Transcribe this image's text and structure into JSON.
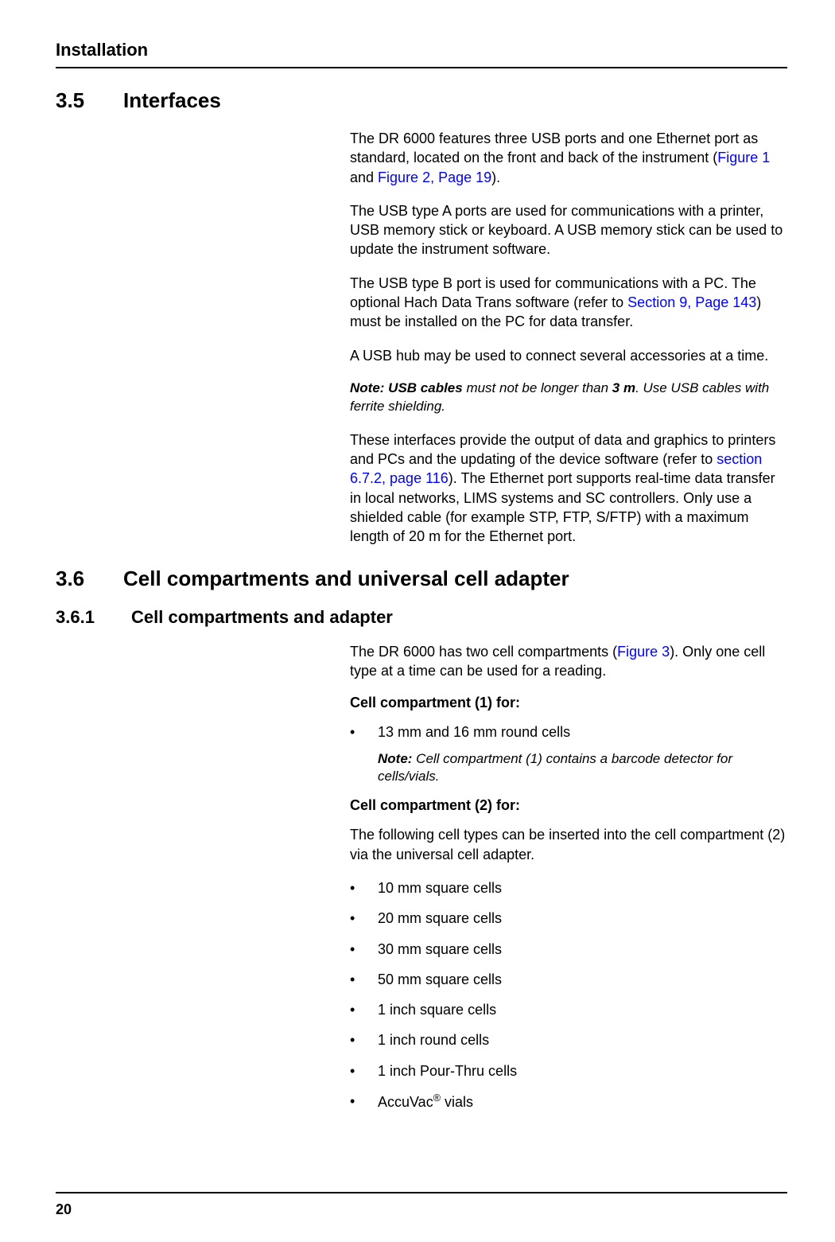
{
  "header": {
    "title": "Installation"
  },
  "section_3_5": {
    "number": "3.5",
    "title": "Interfaces",
    "para1_pre": "The DR 6000 features three USB ports and one Ethernet port as standard, located on the front and back of the instrument (",
    "para1_link1": "Figure 1",
    "para1_mid": " and ",
    "para1_link2": "Figure 2, Page 19",
    "para1_post": ").",
    "para2": "The USB type A ports are used for communications with a printer, USB memory stick or keyboard. A USB memory stick can be used to update the instrument software.",
    "para3_pre": "The USB type B port is used for communications with a PC. The optional Hach Data Trans software (refer to ",
    "para3_link": "Section 9, Page 143",
    "para3_post": ") must be installed on the PC for data transfer.",
    "para4": "A USB hub may be used to connect several accessories at a time.",
    "note1_label": "Note: ",
    "note1_bold1": "USB cables",
    "note1_mid": " must not be longer than ",
    "note1_bold2": "3 m",
    "note1_post": ". Use USB cables with ferrite shielding.",
    "para5_pre": "These interfaces provide the output of data and graphics to printers and PCs and the updating of the device software (refer to ",
    "para5_link": "section 6.7.2, page 116",
    "para5_post": "). The Ethernet port supports real-time data transfer in local networks, LIMS systems and SC controllers. Only use a shielded cable (for example STP, FTP, S/FTP) with a maximum length of 20 m for the Ethernet port."
  },
  "section_3_6": {
    "number": "3.6",
    "title": "Cell compartments and universal cell adapter"
  },
  "section_3_6_1": {
    "number": "3.6.1",
    "title": "Cell compartments and adapter",
    "para1_pre": "The DR 6000 has two cell compartments (",
    "para1_link": "Figure 3",
    "para1_post": "). Only one cell type at a time can be used for a reading.",
    "heading1": "Cell compartment (1) for:",
    "bullet1": "13 mm and 16 mm round cells",
    "bullet1_note_label": "Note:",
    "bullet1_note": " Cell compartment (1) contains a barcode detector for cells/vials.",
    "heading2": "Cell compartment (2) for:",
    "para2": "The following cell types can be inserted into the cell compartment (2) via the universal cell adapter.",
    "bullets2": [
      "10 mm square cells",
      "20 mm square cells",
      "30 mm square cells",
      "50 mm square cells",
      "1 inch square cells",
      "1 inch round cells",
      "1 inch Pour-Thru cells"
    ],
    "bullet_accuvac_pre": "AccuVac",
    "bullet_accuvac_sup": "®",
    "bullet_accuvac_post": " vials"
  },
  "footer": {
    "page_number": "20"
  }
}
